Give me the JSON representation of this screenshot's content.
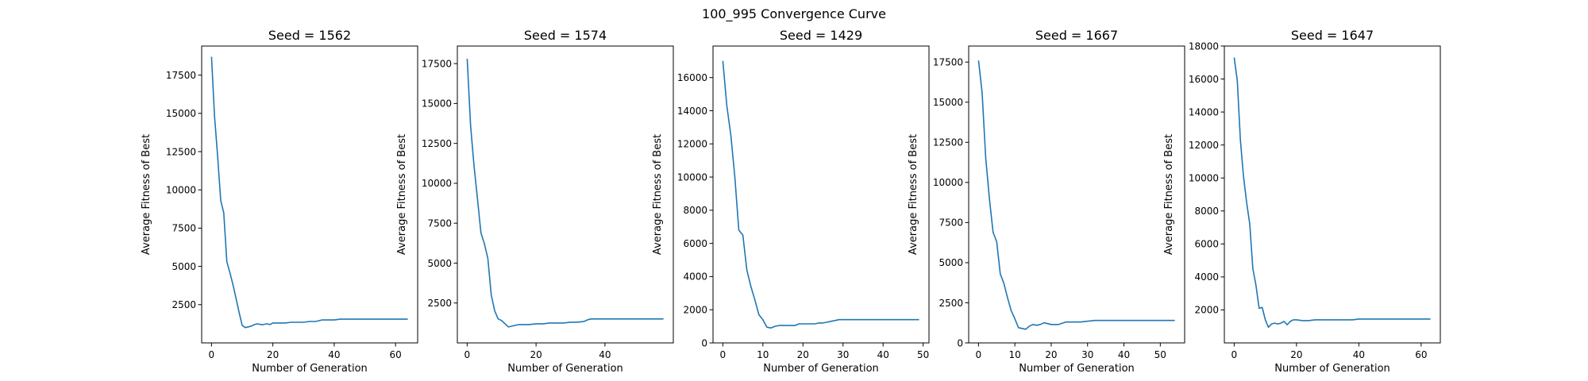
{
  "figure": {
    "suptitle": "100_995 Convergence Curve"
  },
  "chart_data": [
    {
      "type": "line",
      "title": "Seed = 1562",
      "xlabel": "Number of Generation",
      "ylabel": "Average Fitness of Best",
      "xlim": [
        -3.2,
        67.2
      ],
      "ylim": [
        0,
        19400
      ],
      "xticks": [
        0,
        20,
        40,
        60
      ],
      "yticks": [
        2500,
        5000,
        7500,
        10000,
        12500,
        15000,
        17500
      ],
      "ytick_labels": [
        "2500",
        "5000",
        "7500",
        "10000",
        "12500",
        "15000",
        "17500"
      ],
      "x": [
        0,
        1,
        2,
        3,
        4,
        5,
        6,
        7,
        8,
        9,
        10,
        11,
        12,
        13,
        14,
        15,
        16,
        17,
        18,
        19,
        20,
        22,
        24,
        26,
        28,
        30,
        32,
        34,
        36,
        38,
        40,
        42,
        44,
        46,
        48,
        50,
        52,
        54,
        56,
        58,
        60,
        62,
        64
      ],
      "y": [
        18700,
        14800,
        12200,
        9300,
        8500,
        5300,
        4600,
        3800,
        2900,
        2000,
        1150,
        1000,
        1050,
        1100,
        1200,
        1250,
        1200,
        1200,
        1250,
        1200,
        1300,
        1300,
        1300,
        1350,
        1350,
        1350,
        1400,
        1400,
        1500,
        1500,
        1500,
        1550,
        1550,
        1550,
        1550,
        1550,
        1550,
        1550,
        1550,
        1550,
        1550,
        1550,
        1550
      ]
    },
    {
      "type": "line",
      "title": "Seed = 1574",
      "xlabel": "Number of Generation",
      "ylabel": "Average Fitness of Best",
      "xlim": [
        -2.85,
        59.85
      ],
      "ylim": [
        0,
        18600
      ],
      "xticks": [
        0,
        20,
        40
      ],
      "yticks": [
        2500,
        5000,
        7500,
        10000,
        12500,
        15000,
        17500
      ],
      "ytick_labels": [
        "2500",
        "5000",
        "7500",
        "10000",
        "12500",
        "15000",
        "17500"
      ],
      "x": [
        0,
        1,
        2,
        3,
        4,
        5,
        6,
        7,
        8,
        9,
        10,
        11,
        12,
        13,
        14,
        15,
        16,
        18,
        20,
        22,
        24,
        26,
        28,
        30,
        32,
        34,
        35,
        36,
        38,
        40,
        42,
        44,
        46,
        48,
        50,
        52,
        54,
        56,
        57
      ],
      "y": [
        17800,
        13600,
        11100,
        9000,
        6900,
        6200,
        5300,
        3000,
        2000,
        1500,
        1400,
        1200,
        1000,
        1050,
        1100,
        1150,
        1150,
        1150,
        1200,
        1200,
        1250,
        1250,
        1250,
        1300,
        1300,
        1350,
        1450,
        1500,
        1500,
        1500,
        1500,
        1500,
        1500,
        1500,
        1500,
        1500,
        1500,
        1500,
        1500
      ]
    },
    {
      "type": "line",
      "title": "Seed = 1429",
      "xlabel": "Number of Generation",
      "ylabel": "Average Fitness of Best",
      "xlim": [
        -2.45,
        51.45
      ],
      "ylim": [
        0,
        17900
      ],
      "xticks": [
        0,
        10,
        20,
        30,
        40,
        50
      ],
      "yticks": [
        0,
        2000,
        4000,
        6000,
        8000,
        10000,
        12000,
        14000,
        16000
      ],
      "ytick_labels": [
        "0",
        "2000",
        "4000",
        "6000",
        "8000",
        "10000",
        "12000",
        "14000",
        "16000"
      ],
      "x": [
        0,
        1,
        2,
        3,
        4,
        5,
        6,
        7,
        8,
        9,
        10,
        11,
        12,
        13,
        14,
        15,
        16,
        17,
        18,
        19,
        20,
        21,
        22,
        23,
        24,
        25,
        26,
        27,
        28,
        29,
        30,
        32,
        34,
        36,
        38,
        40,
        42,
        44,
        46,
        48,
        49
      ],
      "y": [
        17000,
        14300,
        12500,
        10000,
        6800,
        6500,
        4400,
        3400,
        2600,
        1700,
        1400,
        950,
        900,
        1000,
        1050,
        1050,
        1050,
        1050,
        1050,
        1150,
        1150,
        1150,
        1150,
        1150,
        1200,
        1200,
        1250,
        1300,
        1350,
        1400,
        1400,
        1400,
        1400,
        1400,
        1400,
        1400,
        1400,
        1400,
        1400,
        1400,
        1400
      ]
    },
    {
      "type": "line",
      "title": "Seed = 1667",
      "xlabel": "Number of Generation",
      "ylabel": "Average Fitness of Best",
      "xlim": [
        -2.7,
        56.7
      ],
      "ylim": [
        0,
        18500
      ],
      "xticks": [
        0,
        10,
        20,
        30,
        40,
        50
      ],
      "yticks": [
        0,
        2500,
        5000,
        7500,
        10000,
        12500,
        15000,
        17500
      ],
      "ytick_labels": [
        "0",
        "2500",
        "5000",
        "7500",
        "10000",
        "12500",
        "15000",
        "17500"
      ],
      "x": [
        0,
        1,
        2,
        3,
        4,
        5,
        6,
        7,
        8,
        9,
        10,
        11,
        12,
        13,
        14,
        15,
        16,
        17,
        18,
        19,
        20,
        22,
        24,
        26,
        28,
        30,
        32,
        34,
        36,
        38,
        40,
        42,
        44,
        46,
        48,
        50,
        52,
        54
      ],
      "y": [
        17600,
        15600,
        11500,
        9000,
        6900,
        6300,
        4300,
        3700,
        2800,
        2000,
        1500,
        950,
        900,
        850,
        1050,
        1150,
        1100,
        1150,
        1250,
        1200,
        1150,
        1150,
        1300,
        1300,
        1300,
        1350,
        1400,
        1400,
        1400,
        1400,
        1400,
        1400,
        1400,
        1400,
        1400,
        1400,
        1400,
        1400
      ]
    },
    {
      "type": "line",
      "title": "Seed = 1647",
      "xlabel": "Number of Generation",
      "ylabel": "Average Fitness of Best",
      "xlim": [
        -3.15,
        66.15
      ],
      "ylim": [
        0,
        18000
      ],
      "xticks": [
        0,
        20,
        40,
        60
      ],
      "yticks": [
        2000,
        4000,
        6000,
        8000,
        10000,
        12000,
        14000,
        16000,
        18000
      ],
      "ytick_labels": [
        "2000",
        "4000",
        "6000",
        "8000",
        "10000",
        "12000",
        "14000",
        "16000",
        "18000"
      ],
      "x": [
        0,
        1,
        2,
        3,
        4,
        5,
        6,
        7,
        8,
        9,
        10,
        11,
        12,
        13,
        14,
        15,
        16,
        17,
        18,
        19,
        20,
        22,
        24,
        26,
        28,
        30,
        32,
        34,
        36,
        38,
        40,
        42,
        44,
        46,
        48,
        50,
        52,
        54,
        56,
        58,
        60,
        62,
        63
      ],
      "y": [
        17300,
        15900,
        12300,
        10100,
        8500,
        7200,
        4500,
        3500,
        2100,
        2150,
        1400,
        950,
        1150,
        1200,
        1150,
        1200,
        1300,
        1100,
        1300,
        1400,
        1400,
        1350,
        1350,
        1400,
        1400,
        1400,
        1400,
        1400,
        1400,
        1400,
        1450,
        1450,
        1450,
        1450,
        1450,
        1450,
        1450,
        1450,
        1450,
        1450,
        1450,
        1450,
        1450
      ]
    }
  ]
}
